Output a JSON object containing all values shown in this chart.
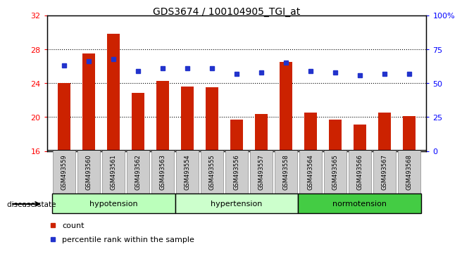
{
  "title": "GDS3674 / 100104905_TGI_at",
  "samples": [
    "GSM493559",
    "GSM493560",
    "GSM493561",
    "GSM493562",
    "GSM493563",
    "GSM493554",
    "GSM493555",
    "GSM493556",
    "GSM493557",
    "GSM493558",
    "GSM493564",
    "GSM493565",
    "GSM493566",
    "GSM493567",
    "GSM493568"
  ],
  "bar_values": [
    24.0,
    27.5,
    29.8,
    22.9,
    24.3,
    23.6,
    23.5,
    19.7,
    20.4,
    26.5,
    20.5,
    19.7,
    19.1,
    20.5,
    20.1
  ],
  "dot_values_pct": [
    63,
    66,
    68,
    59,
    61,
    61,
    61,
    57,
    58,
    65,
    59,
    58,
    56,
    57,
    57
  ],
  "bar_color": "#cc2200",
  "dot_color": "#2233cc",
  "ylim_left": [
    16,
    32
  ],
  "ylim_right": [
    0,
    100
  ],
  "yticks_left": [
    16,
    20,
    24,
    28,
    32
  ],
  "yticks_right": [
    0,
    25,
    50,
    75,
    100
  ],
  "ytick_labels_right": [
    "0",
    "25",
    "50",
    "75",
    "100%"
  ],
  "dotted_gridlines": [
    20,
    24,
    28
  ],
  "groups": [
    {
      "label": "hypotension",
      "start": 0,
      "end": 5,
      "color": "#bbffbb"
    },
    {
      "label": "hypertension",
      "start": 5,
      "end": 10,
      "color": "#ccffcc"
    },
    {
      "label": "normotension",
      "start": 10,
      "end": 15,
      "color": "#44cc44"
    }
  ],
  "disease_state_label": "disease state",
  "legend_items": [
    {
      "label": "count",
      "color": "#cc2200"
    },
    {
      "label": "percentile rank within the sample",
      "color": "#2233cc"
    }
  ],
  "bar_width": 0.5
}
